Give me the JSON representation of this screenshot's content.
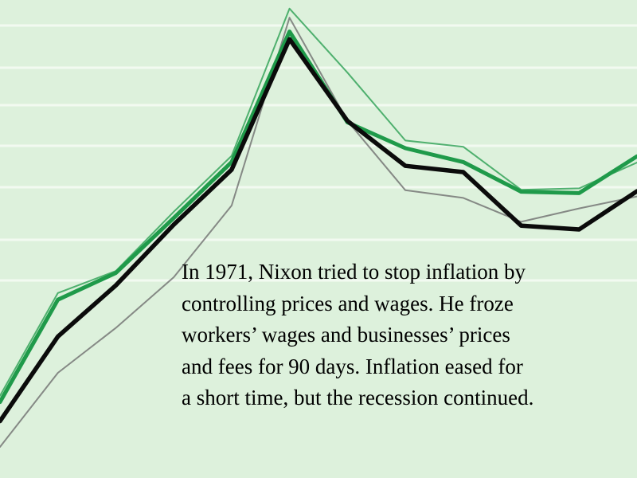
{
  "colors": {
    "background": "#ddf1dc",
    "gridline": "#f2faf1",
    "green": "#1f9a4a",
    "black": "#0b0b0b",
    "gray": "#6f6f6f"
  },
  "caption": {
    "lines": [
      "In 1971, Nixon tried to stop inflation by",
      "controlling prices and wages.  He froze",
      "workers’ wages and businesses’ prices",
      "and fees for 90 days. Inflation eased for",
      "a short time, but the recession continued."
    ]
  },
  "chart_data": {
    "type": "line",
    "title": "",
    "xlabel": "",
    "ylabel": "",
    "grid": true,
    "legend": "none",
    "x": [
      0,
      1,
      2,
      3,
      4,
      5,
      6,
      7,
      8,
      9,
      10,
      11
    ],
    "xlim": [
      0,
      11
    ],
    "ylim": [
      0,
      100
    ],
    "series": [
      {
        "color": "green",
        "style": "thick",
        "values": [
          15.9,
          37.3,
          42.9,
          54.4,
          66.1,
          93.4,
          74.4,
          69.0,
          66.1,
          59.9,
          59.6,
          67.3
        ]
      },
      {
        "color": "black",
        "style": "thick",
        "values": [
          11.9,
          29.6,
          40.3,
          53.0,
          64.5,
          91.8,
          74.7,
          65.3,
          64.0,
          52.8,
          52.0,
          60.0
        ]
      },
      {
        "color": "green",
        "style": "thin",
        "values": [
          17.2,
          38.7,
          43.3,
          55.7,
          67.4,
          98.2,
          84.8,
          70.6,
          69.3,
          60.3,
          60.6,
          66.0
        ]
      },
      {
        "color": "gray",
        "style": "thin",
        "values": [
          6.5,
          22.0,
          31.4,
          42.0,
          57.0,
          96.3,
          74.7,
          60.2,
          58.6,
          53.6,
          56.4,
          58.9
        ]
      }
    ]
  }
}
